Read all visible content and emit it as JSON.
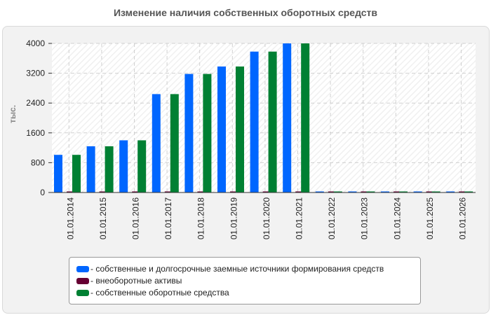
{
  "chart_data": {
    "type": "bar",
    "title": "Изменение наличия собственных оборотных средств",
    "ylabel": "тыс.",
    "xlabel": "",
    "ylim": [
      0,
      4000
    ],
    "yticks": [
      0,
      800,
      1600,
      2400,
      3200,
      4000
    ],
    "grid": true,
    "legend_position": "bottom",
    "categories": [
      "01.01.2014",
      "01.01.2015",
      "01.01.2016",
      "01.01.2017",
      "01.01.2018",
      "01.01.2019",
      "01.01.2020",
      "01.01.2021",
      "01.01.2022",
      "01.01.2023",
      "01.01.2024",
      "01.01.2025",
      "01.01.2026"
    ],
    "series": [
      {
        "name": "- собственные и долгосрочные заемные источники формирования средств",
        "color": "#0066ff",
        "values": [
          1010,
          1240,
          1400,
          2640,
          3180,
          3380,
          3780,
          4000,
          0,
          0,
          0,
          0,
          0
        ]
      },
      {
        "name": "- внеоборотные активы",
        "color": "#660033",
        "values": [
          0,
          0,
          0,
          0,
          0,
          0,
          0,
          0,
          0,
          0,
          0,
          0,
          0
        ]
      },
      {
        "name": "- собственные оборотные средства",
        "color": "#008033",
        "values": [
          1010,
          1240,
          1400,
          2640,
          3180,
          3380,
          3780,
          4000,
          0,
          0,
          0,
          0,
          0
        ]
      }
    ]
  }
}
